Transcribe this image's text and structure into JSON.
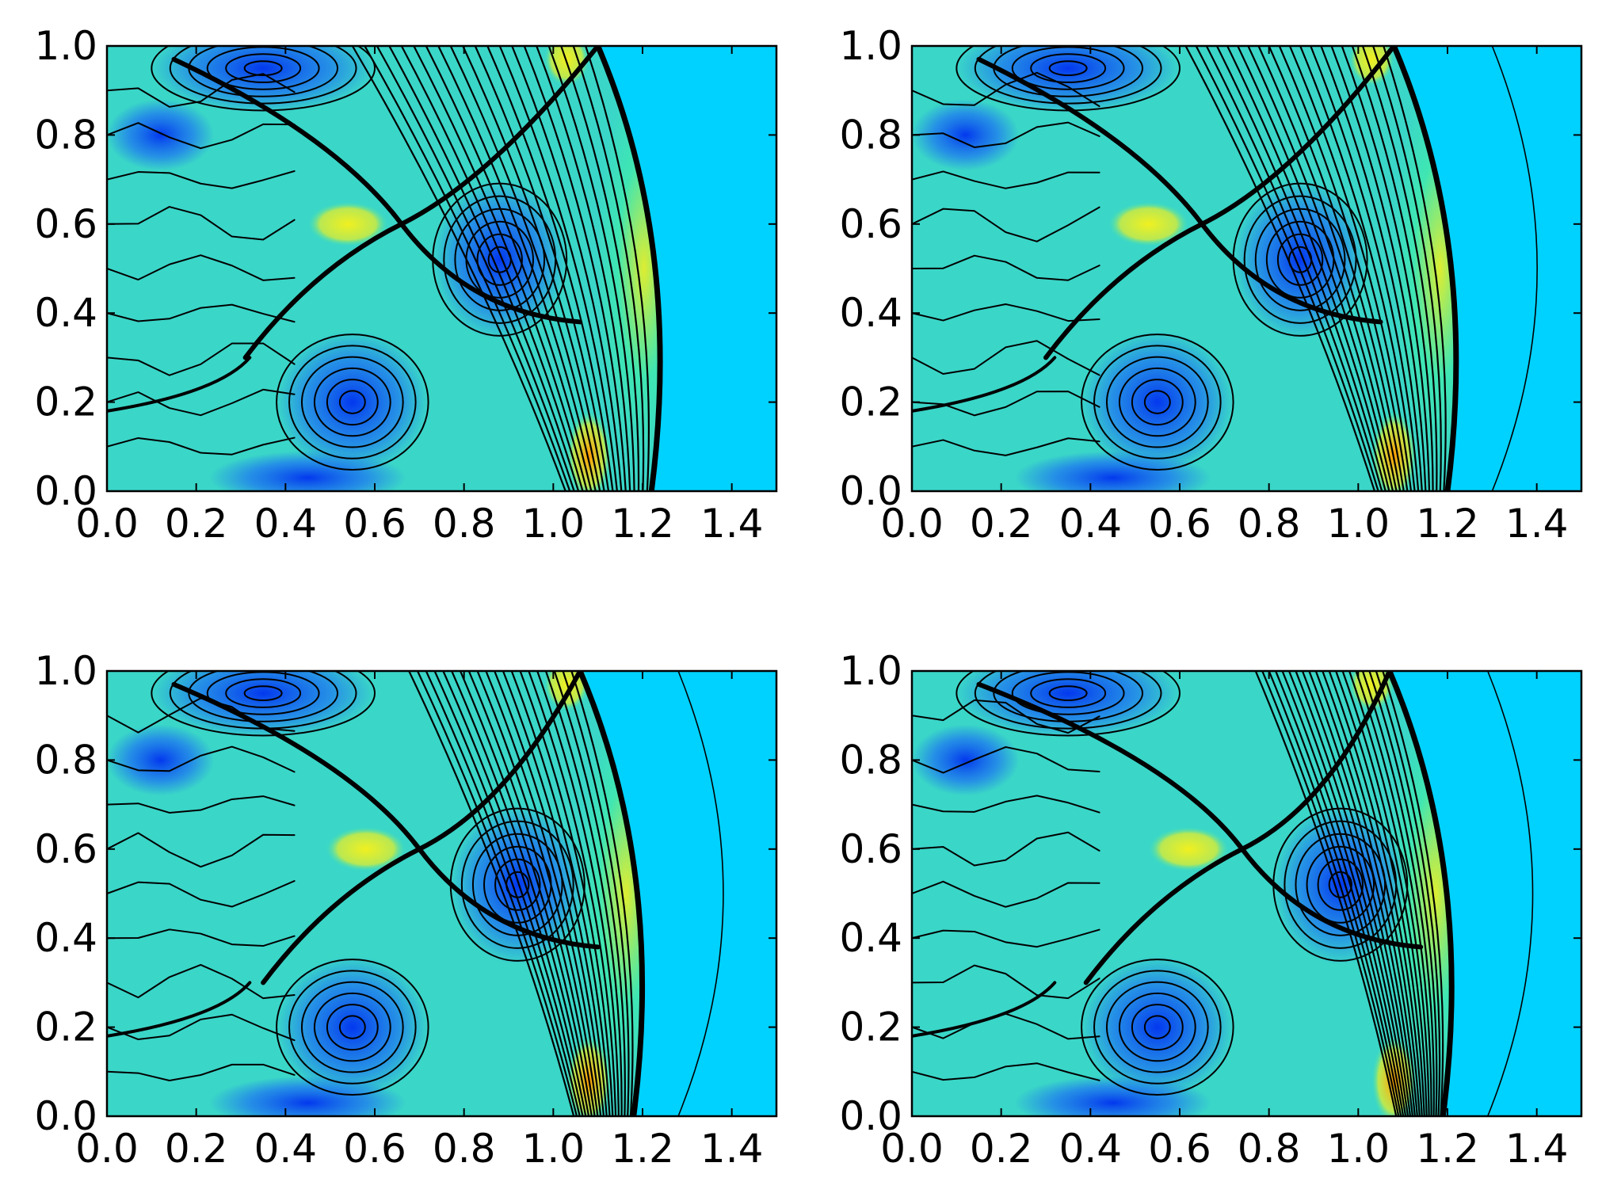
{
  "chart_data": [
    {
      "type": "heatmap",
      "panel": "top-left",
      "x_ticks": [
        "0.0",
        "0.2",
        "0.4",
        "0.6",
        "0.8",
        "1.0",
        "1.2",
        "1.4"
      ],
      "y_ticks": [
        "0.0",
        "0.2",
        "0.4",
        "0.6",
        "0.8",
        "1.0"
      ],
      "xlim": [
        0,
        1.5
      ],
      "ylim": [
        0,
        1
      ],
      "shock_front_x": 1.22,
      "triple_point": [
        0.66,
        0.6
      ],
      "contour_levels": 40,
      "colormap": "jet"
    },
    {
      "type": "heatmap",
      "panel": "top-right",
      "x_ticks": [
        "0.0",
        "0.2",
        "0.4",
        "0.6",
        "0.8",
        "1.0",
        "1.2",
        "1.4"
      ],
      "y_ticks": [
        "0.0",
        "0.2",
        "0.4",
        "0.6",
        "0.8",
        "1.0"
      ],
      "xlim": [
        0,
        1.5
      ],
      "ylim": [
        0,
        1
      ],
      "shock_front_x": 1.2,
      "triple_point": [
        0.65,
        0.6
      ],
      "contour_levels": 40,
      "colormap": "jet"
    },
    {
      "type": "heatmap",
      "panel": "bottom-left",
      "x_ticks": [
        "0.0",
        "0.2",
        "0.4",
        "0.6",
        "0.8",
        "1.0",
        "1.2",
        "1.4"
      ],
      "y_ticks": [
        "0.0",
        "0.2",
        "0.4",
        "0.6",
        "0.8",
        "1.0"
      ],
      "xlim": [
        0,
        1.5
      ],
      "ylim": [
        0,
        1
      ],
      "shock_front_x": 1.18,
      "triple_point": [
        0.7,
        0.6
      ],
      "contour_levels": 40,
      "colormap": "jet"
    },
    {
      "type": "heatmap",
      "panel": "bottom-right",
      "x_ticks": [
        "0.0",
        "0.2",
        "0.4",
        "0.6",
        "0.8",
        "1.0",
        "1.2",
        "1.4"
      ],
      "y_ticks": [
        "0.0",
        "0.2",
        "0.4",
        "0.6",
        "0.8",
        "1.0"
      ],
      "xlim": [
        0,
        1.5
      ],
      "ylim": [
        0,
        1
      ],
      "shock_front_x": 1.19,
      "triple_point": [
        0.74,
        0.6
      ],
      "contour_levels": 40,
      "colormap": "jet"
    }
  ],
  "colors": {
    "ambient": "#00d2ff",
    "low": "#0030f0",
    "mid": "#40e8b0",
    "high": "#f0f020",
    "peak": "#ff9a00",
    "contour": "#000000"
  }
}
